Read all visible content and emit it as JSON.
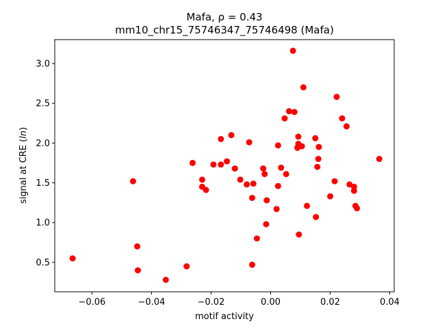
{
  "chart_data": {
    "type": "scatter",
    "title_line1": "Mafa, ρ = 0.43",
    "title_line2": "mm10_chr15_75746347_75746498 (Mafa)",
    "xlabel": "motif activity",
    "ylabel": "signal at CRE (ln)",
    "xlim": [
      -0.0725,
      0.0415
    ],
    "ylim": [
      0.13,
      3.3
    ],
    "xticks": [
      {
        "value": -0.06,
        "label": "−0.06"
      },
      {
        "value": -0.04,
        "label": "−0.04"
      },
      {
        "value": -0.02,
        "label": "−0.02"
      },
      {
        "value": 0.0,
        "label": "0.00"
      },
      {
        "value": 0.02,
        "label": "0.02"
      },
      {
        "value": 0.04,
        "label": "0.04"
      }
    ],
    "yticks": [
      {
        "value": 0.5,
        "label": "0.5"
      },
      {
        "value": 1.0,
        "label": "1.0"
      },
      {
        "value": 1.5,
        "label": "1.5"
      },
      {
        "value": 2.0,
        "label": "2.0"
      },
      {
        "value": 2.5,
        "label": "2.5"
      },
      {
        "value": 3.0,
        "label": "3.0"
      }
    ],
    "grid": false,
    "marker_color": "#ff0000",
    "points": [
      [
        -0.0665,
        0.55
      ],
      [
        -0.0462,
        1.52
      ],
      [
        -0.0448,
        0.7
      ],
      [
        -0.0446,
        0.4
      ],
      [
        -0.0352,
        0.28
      ],
      [
        -0.0282,
        0.45
      ],
      [
        -0.0262,
        1.75
      ],
      [
        -0.023,
        1.54
      ],
      [
        -0.023,
        1.45
      ],
      [
        -0.0217,
        1.41
      ],
      [
        -0.0192,
        1.73
      ],
      [
        -0.0167,
        2.05
      ],
      [
        -0.0167,
        1.73
      ],
      [
        -0.0147,
        1.77
      ],
      [
        -0.0132,
        2.1
      ],
      [
        -0.012,
        1.68
      ],
      [
        -0.0102,
        1.54
      ],
      [
        -0.008,
        1.48
      ],
      [
        -0.0072,
        2.01
      ],
      [
        -0.0062,
        0.47
      ],
      [
        -0.0062,
        1.31
      ],
      [
        -0.0058,
        1.49
      ],
      [
        -0.0046,
        0.8
      ],
      [
        -0.0025,
        1.68
      ],
      [
        -0.002,
        1.61
      ],
      [
        -0.0015,
        0.98
      ],
      [
        -0.0013,
        1.28
      ],
      [
        0.002,
        1.17
      ],
      [
        0.0025,
        1.97
      ],
      [
        0.0025,
        1.46
      ],
      [
        0.0035,
        1.69
      ],
      [
        0.0047,
        2.31
      ],
      [
        0.0052,
        1.61
      ],
      [
        0.0062,
        2.4
      ],
      [
        0.0075,
        3.16
      ],
      [
        0.008,
        2.39
      ],
      [
        0.009,
        1.94
      ],
      [
        0.0093,
        1.99
      ],
      [
        0.0093,
        2.08
      ],
      [
        0.0095,
        0.85
      ],
      [
        0.0105,
        1.96
      ],
      [
        0.011,
        2.7
      ],
      [
        0.0122,
        1.21
      ],
      [
        0.015,
        2.06
      ],
      [
        0.0152,
        1.07
      ],
      [
        0.0157,
        1.7
      ],
      [
        0.016,
        1.8
      ],
      [
        0.0162,
        1.95
      ],
      [
        0.02,
        1.33
      ],
      [
        0.0215,
        1.52
      ],
      [
        0.0222,
        2.58
      ],
      [
        0.024,
        2.31
      ],
      [
        0.0255,
        2.21
      ],
      [
        0.0265,
        1.48
      ],
      [
        0.028,
        1.45
      ],
      [
        0.028,
        1.4
      ],
      [
        0.0285,
        1.21
      ],
      [
        0.029,
        1.18
      ],
      [
        0.0365,
        1.8
      ]
    ]
  }
}
